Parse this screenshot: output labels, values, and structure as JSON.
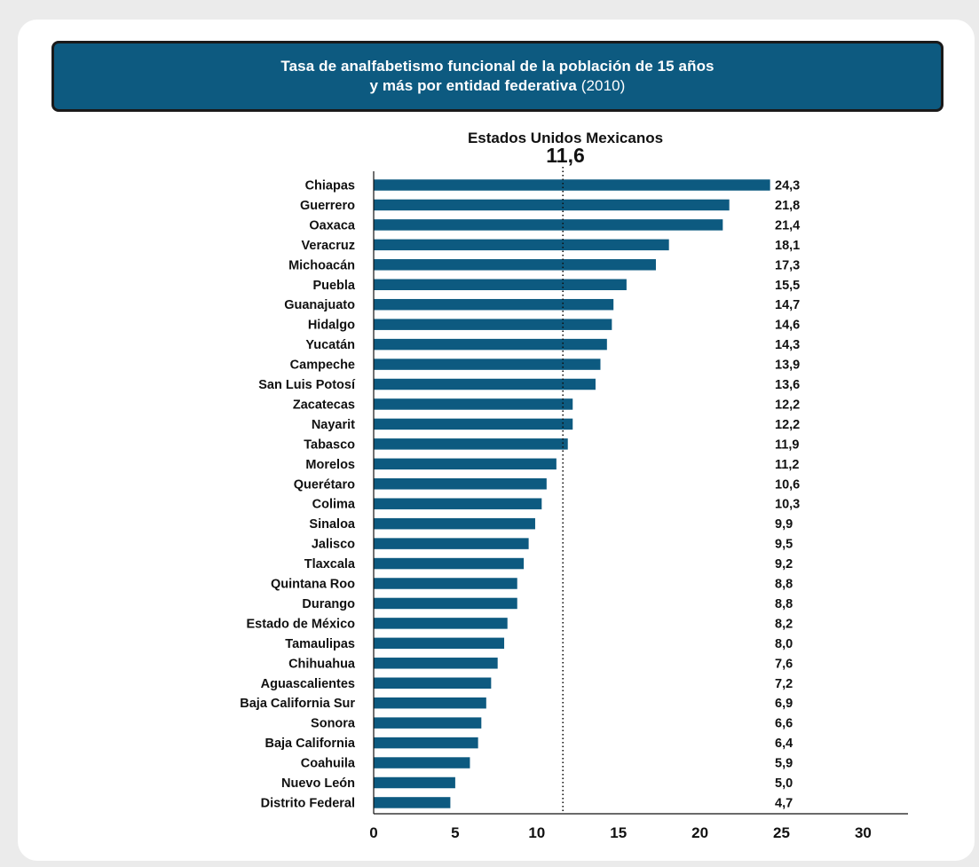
{
  "chart_data": {
    "type": "bar",
    "orientation": "horizontal",
    "title_line1": "Tasa de analfabetismo funcional de la población de 15 años",
    "title_line2": "y más por entidad federativa",
    "title_year": "(2010)",
    "reference": {
      "label": "Estados Unidos Mexicanos",
      "value": 11.6,
      "value_text": "11,6"
    },
    "categories": [
      "Chiapas",
      "Guerrero",
      "Oaxaca",
      "Veracruz",
      "Michoacán",
      "Puebla",
      "Guanajuato",
      "Hidalgo",
      "Yucatán",
      "Campeche",
      "San Luis Potosí",
      "Zacatecas",
      "Nayarit",
      "Tabasco",
      "Morelos",
      "Querétaro",
      "Colima",
      "Sinaloa",
      "Jalisco",
      "Tlaxcala",
      "Quintana Roo",
      "Durango",
      "Estado de México",
      "Tamaulipas",
      "Chihuahua",
      "Aguascalientes",
      "Baja California Sur",
      "Sonora",
      "Baja California",
      "Coahuila",
      "Nuevo León",
      "Distrito Federal"
    ],
    "values": [
      24.3,
      21.8,
      21.4,
      18.1,
      17.3,
      15.5,
      14.7,
      14.6,
      14.3,
      13.9,
      13.6,
      12.2,
      12.2,
      11.9,
      11.2,
      10.6,
      10.3,
      9.9,
      9.5,
      9.2,
      8.8,
      8.8,
      8.2,
      8.0,
      7.6,
      7.2,
      6.9,
      6.6,
      6.4,
      5.9,
      5.0,
      4.7
    ],
    "value_labels": [
      "24,3",
      "21,8",
      "21,4",
      "18,1",
      "17,3",
      "15,5",
      "14,7",
      "14,6",
      "14,3",
      "13,9",
      "13,6",
      "12,2",
      "12,2",
      "11,9",
      "11,2",
      "10,6",
      "10,3",
      "9,9",
      "9,5",
      "9,2",
      "8,8",
      "8,8",
      "8,2",
      "8,0",
      "7,6",
      "7,2",
      "6,9",
      "6,6",
      "6,4",
      "5,9",
      "5,0",
      "4,7"
    ],
    "xlim": [
      0,
      30
    ],
    "xticks": [
      "0",
      "5",
      "10",
      "15",
      "20",
      "25",
      "30"
    ],
    "bar_color": "#0d5a80",
    "grid": false,
    "legend": "none"
  }
}
